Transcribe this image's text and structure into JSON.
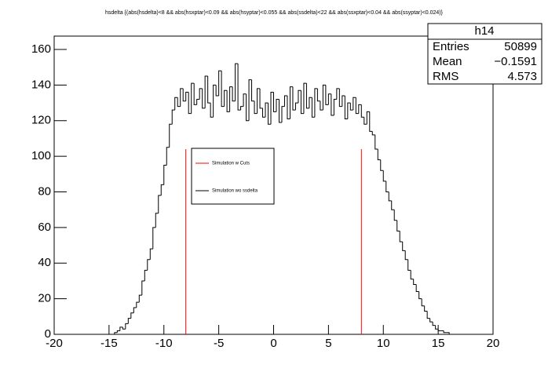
{
  "chart_data": {
    "type": "histogram",
    "title": "hsdelta {(abs(hsdelta)<8 && abs(hsxptar)<0.09 && abs(hsyptar)<0.055 && abs(ssdelta)<22 && abs(ssxptar)<0.04 && abs(ssyptar)<0.024)}",
    "xlim": [
      -20,
      20
    ],
    "ylim": [
      0,
      167.5
    ],
    "xticks": [
      -20,
      -15,
      -10,
      -5,
      0,
      5,
      10,
      15,
      20
    ],
    "yticks": [
      0,
      20,
      40,
      60,
      80,
      100,
      120,
      140,
      160
    ],
    "bins": [
      -14.5,
      -14.25,
      -14,
      -13.75,
      -13.5,
      -13.25,
      -13,
      -12.75,
      -12.5,
      -12.25,
      -12,
      -11.75,
      -11.5,
      -11.25,
      -11,
      -10.75,
      -10.5,
      -10.25,
      -10,
      -9.75,
      -9.5,
      -9.25,
      -9,
      -8.75,
      -8.5,
      -8.25,
      -8,
      -7.75,
      -7.5,
      -7.25,
      -7,
      -6.75,
      -6.5,
      -6.25,
      -6,
      -5.75,
      -5.5,
      -5.25,
      -5,
      -4.75,
      -4.5,
      -4.25,
      -4,
      -3.75,
      -3.5,
      -3.25,
      -3,
      -2.75,
      -2.5,
      -2.25,
      -2,
      -1.75,
      -1.5,
      -1.25,
      -1,
      -0.75,
      -0.5,
      -0.25,
      0,
      0.25,
      0.5,
      0.75,
      1,
      1.25,
      1.5,
      1.75,
      2,
      2.25,
      2.5,
      2.75,
      3,
      3.25,
      3.5,
      3.75,
      4,
      4.25,
      4.5,
      4.75,
      5,
      5.25,
      5.5,
      5.75,
      6,
      6.25,
      6.5,
      6.75,
      7,
      7.25,
      7.5,
      7.75,
      8,
      8.25,
      8.5,
      8.75,
      9,
      9.25,
      9.5,
      9.75,
      10,
      10.25,
      10.5,
      10.75,
      11,
      11.25,
      11.5,
      11.75,
      12,
      12.25,
      12.5,
      12.75,
      13,
      13.25,
      13.5,
      13.75,
      14,
      14.25,
      14.5,
      14.75,
      15,
      15.25,
      15.5,
      15.75,
      16
    ],
    "series": [
      {
        "name": "Simulation w Cuts",
        "color": "#ff0000",
        "x": [
          -8,
          8
        ],
        "values": [
          104,
          104
        ]
      },
      {
        "name": "Simulation wo ssdelta",
        "color": "#000000",
        "values": [
          1,
          2,
          4,
          3,
          6,
          9,
          12,
          15,
          18,
          22,
          30,
          36,
          42,
          48,
          60,
          68,
          78,
          84,
          95,
          105,
          118,
          126,
          133,
          128,
          138,
          131,
          136,
          124,
          141,
          129,
          132,
          138,
          127,
          145,
          130,
          122,
          140,
          134,
          148,
          128,
          137,
          125,
          139,
          131,
          152,
          126,
          128,
          135,
          120,
          143,
          131,
          124,
          138,
          127,
          122,
          130,
          118,
          136,
          125,
          132,
          119,
          128,
          134,
          121,
          139,
          126,
          130,
          137,
          124,
          141,
          127,
          133,
          122,
          138,
          131,
          126,
          140,
          129,
          135,
          123,
          132,
          138,
          128,
          134,
          121,
          130,
          126,
          133,
          124,
          129,
          122,
          118,
          125,
          114,
          112,
          104,
          98,
          92,
          86,
          80,
          75,
          70,
          64,
          58,
          52,
          47,
          42,
          36,
          31,
          28,
          24,
          20,
          16,
          13,
          9,
          7,
          5,
          3,
          2,
          2,
          1,
          1
        ]
      }
    ],
    "stats": {
      "title": "h14",
      "rows": [
        {
          "name": "Entries",
          "value": 50899
        },
        {
          "name": "Mean",
          "value": {
            "value": -0.1591,
            "label": "−0.1591"
          }
        },
        {
          "name": "RMS",
          "value": 4.573
        }
      ]
    }
  }
}
